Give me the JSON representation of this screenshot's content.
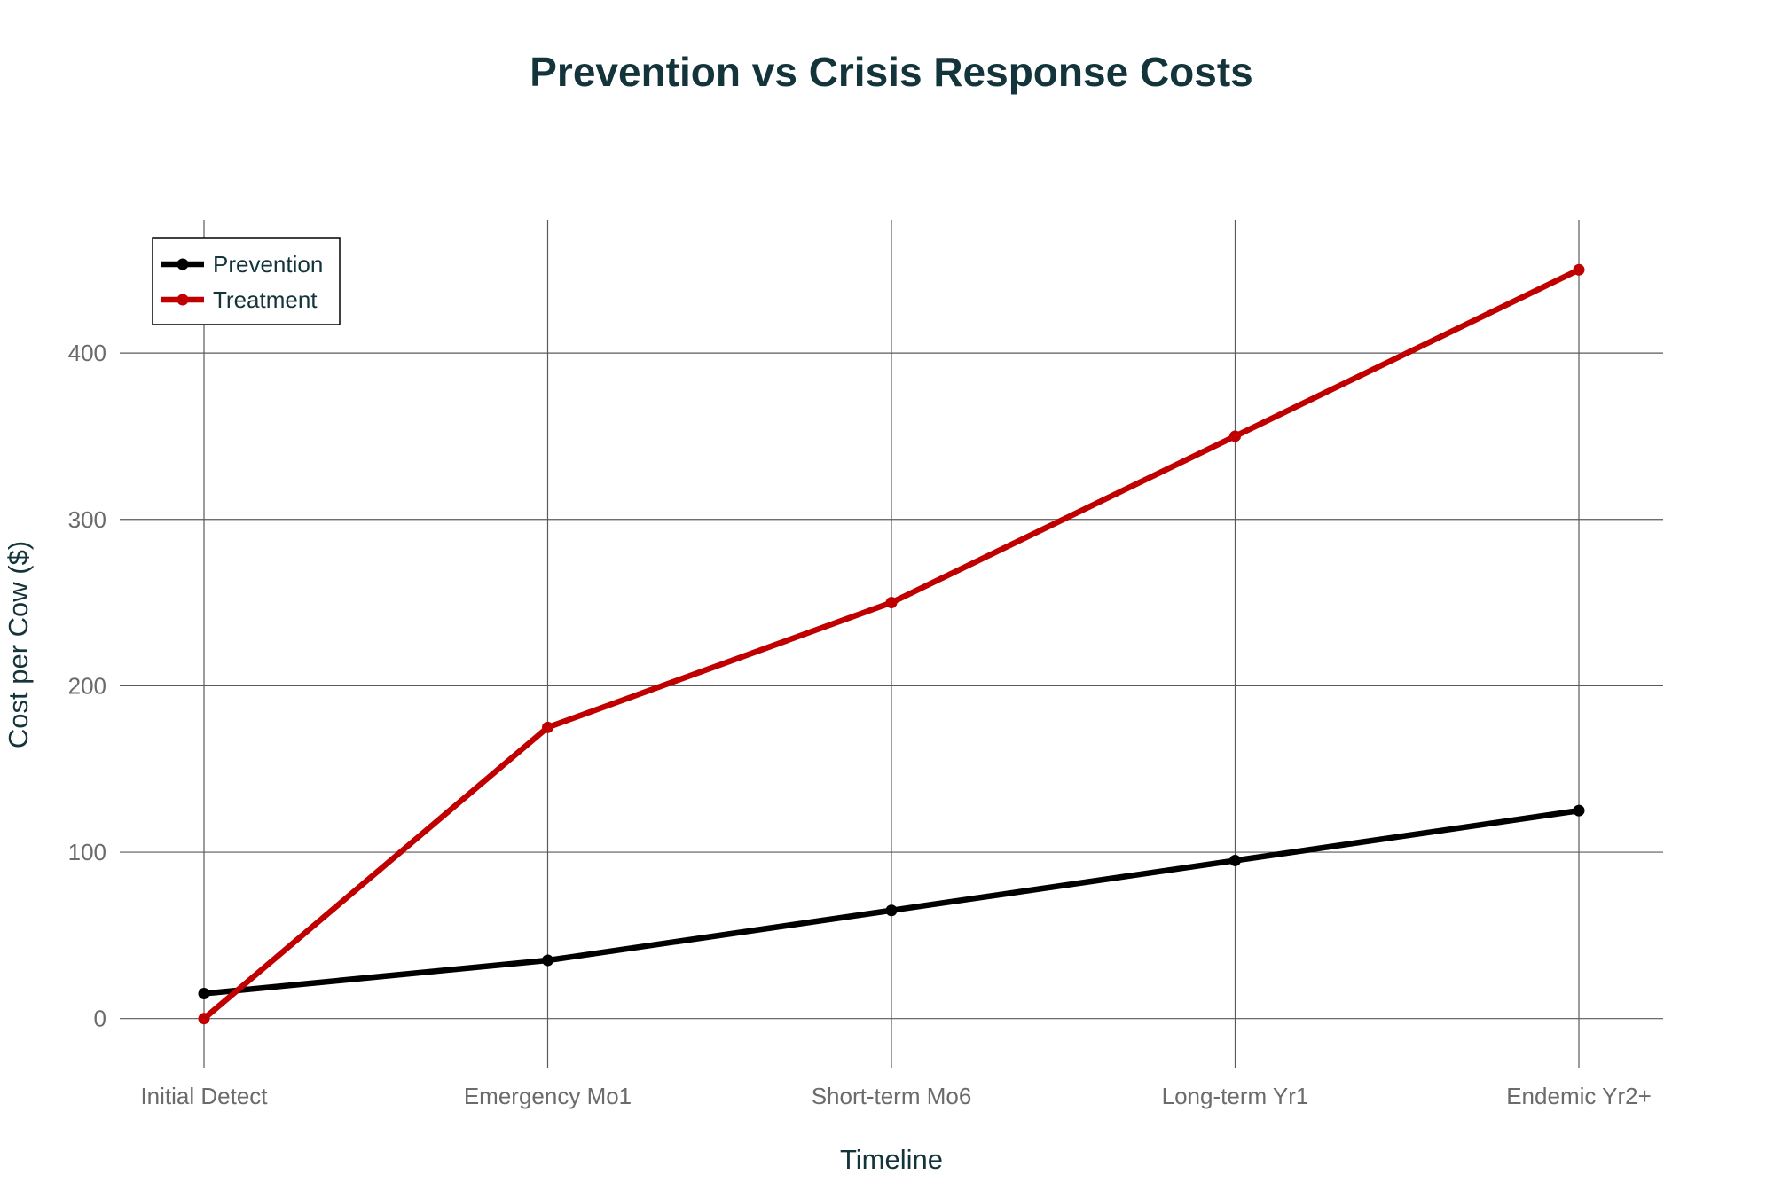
{
  "chart_data": {
    "type": "line",
    "title": "Prevention vs Crisis Response Costs",
    "xlabel": "Timeline",
    "ylabel": "Cost per Cow ($)",
    "categories": [
      "Initial Detect",
      "Emergency Mo1",
      "Short-term Mo6",
      "Long-term Yr1",
      "Endemic Yr2+"
    ],
    "yticks": [
      0,
      100,
      200,
      300,
      400
    ],
    "ylim": [
      -30,
      480
    ],
    "grid": true,
    "legend_position": "top-left",
    "series": [
      {
        "name": "Prevention",
        "color": "#000000",
        "values": [
          15,
          35,
          65,
          95,
          125
        ]
      },
      {
        "name": "Treatment",
        "color": "#c00000",
        "values": [
          0,
          175,
          250,
          350,
          450
        ]
      }
    ]
  }
}
